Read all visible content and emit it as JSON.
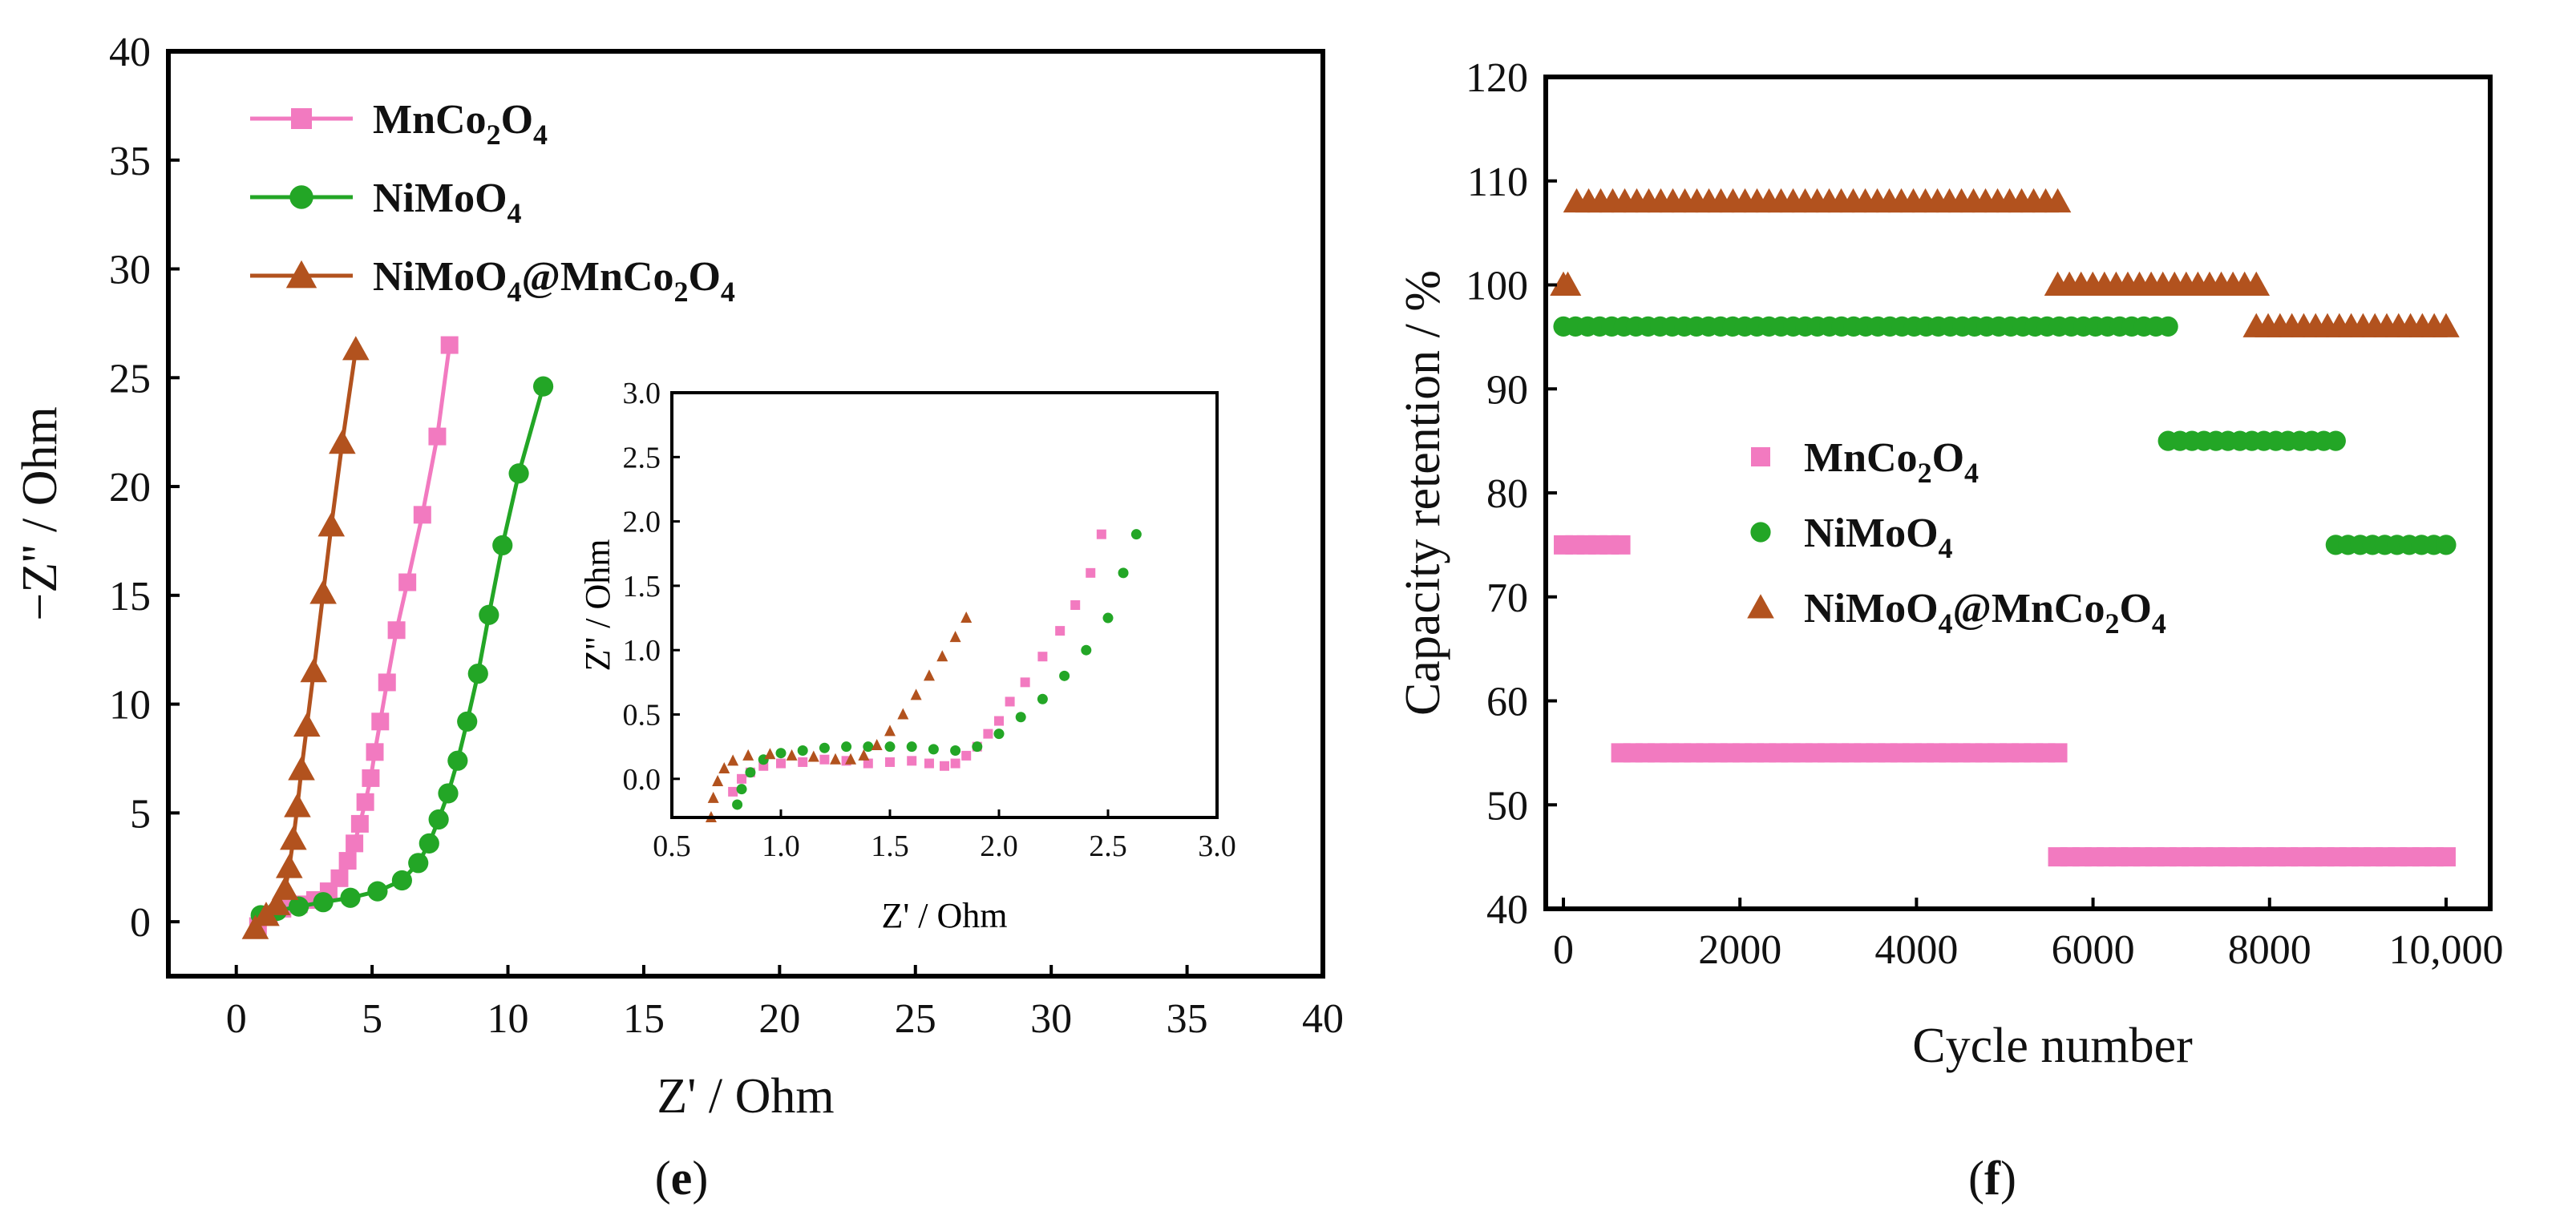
{
  "colors": {
    "pink": "#f27ac0",
    "green": "#23a626",
    "brown": "#b2521e",
    "axis": "#000000"
  },
  "chart_data": [
    {
      "id": "e",
      "type": "scatter",
      "panel_label": "e",
      "xlabel": "Z' / Ohm",
      "ylabel": "−Z'' / Ohm",
      "xlim": [
        -2.5,
        40
      ],
      "ylim": [
        -2.5,
        40
      ],
      "xticks": [
        "0",
        "5",
        "10",
        "15",
        "20",
        "25",
        "30",
        "35",
        "40"
      ],
      "yticks": [
        "0",
        "5",
        "10",
        "15",
        "20",
        "25",
        "30",
        "35",
        "40"
      ],
      "legend_position": "top-left",
      "series": [
        {
          "name": "MnCo2O4",
          "label_parts": [
            "MnCo",
            "2",
            "O",
            "4"
          ],
          "marker": "square",
          "color": "pink",
          "x": [
            0.8,
            1.2,
            1.7,
            2.3,
            2.9,
            3.4,
            3.8,
            4.1,
            4.35,
            4.55,
            4.75,
            4.95,
            5.1,
            5.3,
            5.55,
            5.9,
            6.3,
            6.85,
            7.4,
            7.85
          ],
          "y": [
            -0.2,
            0.3,
            0.6,
            0.8,
            1.0,
            1.4,
            2.0,
            2.8,
            3.6,
            4.5,
            5.5,
            6.6,
            7.8,
            9.2,
            11.0,
            13.4,
            15.6,
            18.7,
            22.3,
            26.5
          ]
        },
        {
          "name": "NiMoO4",
          "label_parts": [
            "NiMoO",
            "4"
          ],
          "marker": "circle",
          "color": "green",
          "x": [
            0.9,
            1.5,
            2.3,
            3.2,
            4.2,
            5.2,
            6.1,
            6.7,
            7.1,
            7.45,
            7.8,
            8.15,
            8.5,
            8.9,
            9.3,
            9.8,
            10.4,
            11.3
          ],
          "y": [
            0.3,
            0.5,
            0.7,
            0.9,
            1.1,
            1.4,
            1.9,
            2.7,
            3.6,
            4.7,
            5.9,
            7.4,
            9.2,
            11.4,
            14.1,
            17.3,
            20.6,
            24.6
          ]
        },
        {
          "name": "NiMoO4@MnCo2O4",
          "label_parts": [
            "NiMoO",
            "4",
            "@MnCo",
            "2",
            "O",
            "4"
          ],
          "marker": "triangle",
          "color": "brown",
          "x": [
            0.7,
            1.1,
            1.5,
            1.8,
            1.95,
            2.1,
            2.25,
            2.4,
            2.6,
            2.85,
            3.2,
            3.5,
            3.9,
            4.4
          ],
          "y": [
            -0.3,
            0.3,
            0.8,
            1.5,
            2.5,
            3.8,
            5.3,
            7.0,
            9.0,
            11.5,
            15.1,
            18.2,
            22.0,
            26.3
          ]
        }
      ],
      "inset": {
        "xlabel": "Z' / Ohm",
        "ylabel": "Z'' / Ohm",
        "xlim": [
          0.5,
          3.0
        ],
        "ylim": [
          -0.3,
          3.0
        ],
        "xticks": [
          "0.5",
          "1.0",
          "1.5",
          "2.0",
          "2.5",
          "3.0"
        ],
        "yticks": [
          "0.0",
          "0.5",
          "1.0",
          "1.5",
          "2.0",
          "2.5",
          "3.0"
        ],
        "series": [
          {
            "name": "MnCo2O4",
            "color": "pink",
            "x": [
              0.78,
              0.82,
              0.86,
              0.92,
              1.0,
              1.1,
              1.2,
              1.3,
              1.4,
              1.5,
              1.6,
              1.68,
              1.75,
              1.8,
              1.85,
              1.9,
              1.95,
              2.0,
              2.05,
              2.12,
              2.2,
              2.28,
              2.35,
              2.42,
              2.47
            ],
            "y": [
              -0.1,
              0.0,
              0.05,
              0.1,
              0.12,
              0.13,
              0.15,
              0.14,
              0.12,
              0.13,
              0.14,
              0.12,
              0.1,
              0.12,
              0.18,
              0.25,
              0.35,
              0.45,
              0.6,
              0.75,
              0.95,
              1.15,
              1.35,
              1.6,
              1.9
            ]
          },
          {
            "name": "NiMoO4",
            "color": "green",
            "x": [
              0.8,
              0.82,
              0.86,
              0.92,
              1.0,
              1.1,
              1.2,
              1.3,
              1.4,
              1.5,
              1.6,
              1.7,
              1.8,
              1.9,
              2.0,
              2.1,
              2.2,
              2.3,
              2.4,
              2.5,
              2.57,
              2.63
            ],
            "y": [
              -0.2,
              -0.08,
              0.05,
              0.15,
              0.2,
              0.22,
              0.24,
              0.25,
              0.25,
              0.25,
              0.25,
              0.23,
              0.22,
              0.25,
              0.35,
              0.48,
              0.62,
              0.8,
              1.0,
              1.25,
              1.6,
              1.9
            ]
          },
          {
            "name": "NiMoO4@MnCo2O4",
            "color": "brown",
            "x": [
              0.68,
              0.69,
              0.71,
              0.74,
              0.78,
              0.85,
              0.95,
              1.05,
              1.15,
              1.25,
              1.32,
              1.38,
              1.44,
              1.5,
              1.56,
              1.62,
              1.68,
              1.74,
              1.8,
              1.85
            ],
            "y": [
              -0.3,
              -0.15,
              -0.02,
              0.08,
              0.14,
              0.18,
              0.19,
              0.18,
              0.17,
              0.15,
              0.15,
              0.18,
              0.26,
              0.37,
              0.5,
              0.65,
              0.8,
              0.95,
              1.1,
              1.25
            ]
          }
        ]
      }
    },
    {
      "id": "f",
      "type": "scatter",
      "panel_label": "f",
      "xlabel": "Cycle number",
      "ylabel": "Capacity retention / %",
      "xlim": [
        -200,
        10500
      ],
      "ylim": [
        40,
        120
      ],
      "xticks": [
        "0",
        "2000",
        "4000",
        "6000",
        "8000",
        "10,000"
      ],
      "yticks": [
        "40",
        "50",
        "60",
        "70",
        "80",
        "90",
        "100",
        "110",
        "120"
      ],
      "legend_position": "center-left",
      "series": [
        {
          "name": "MnCo2O4",
          "label_parts": [
            "MnCo",
            "2",
            "O",
            "4"
          ],
          "marker": "square",
          "color": "pink",
          "segments": [
            {
              "x0": 0,
              "x1": 650,
              "y": 75
            },
            {
              "x0": 650,
              "x1": 5600,
              "y": 55
            },
            {
              "x0": 5600,
              "x1": 10000,
              "y": 45
            }
          ]
        },
        {
          "name": "NiMoO4",
          "label_parts": [
            "NiMoO",
            "4"
          ],
          "marker": "circle",
          "color": "green",
          "segments": [
            {
              "x0": 0,
              "x1": 6850,
              "y": 96
            },
            {
              "x0": 6850,
              "x1": 8750,
              "y": 85
            },
            {
              "x0": 8750,
              "x1": 10000,
              "y": 75
            }
          ]
        },
        {
          "name": "NiMoO4@MnCo2O4",
          "label_parts": [
            "NiMoO",
            "4",
            "@MnCo",
            "2",
            "O",
            "4"
          ],
          "marker": "triangle",
          "color": "brown",
          "segments": [
            {
              "x0": 0,
              "x1": 50,
              "y": 100
            },
            {
              "x0": 150,
              "x1": 5600,
              "y": 108
            },
            {
              "x0": 5600,
              "x1": 7850,
              "y": 100
            },
            {
              "x0": 7850,
              "x1": 10000,
              "y": 96
            }
          ]
        }
      ]
    }
  ]
}
